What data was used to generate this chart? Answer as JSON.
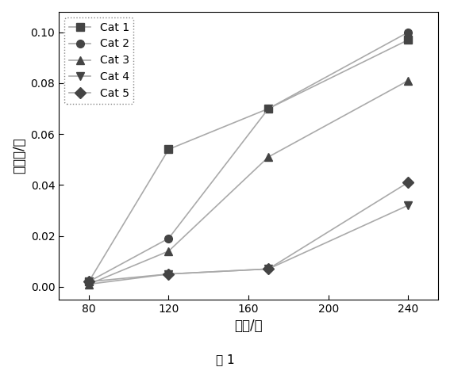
{
  "x": [
    80,
    120,
    170,
    240
  ],
  "series": [
    {
      "label": "Cat 1",
      "y": [
        0.002,
        0.054,
        0.07,
        0.097
      ],
      "marker": "s",
      "color": "#444444"
    },
    {
      "label": "Cat 2",
      "y": [
        0.002,
        0.019,
        0.07,
        0.1
      ],
      "marker": "o",
      "color": "#444444"
    },
    {
      "label": "Cat 3",
      "y": [
        0.001,
        0.014,
        0.051,
        0.081
      ],
      "marker": "^",
      "color": "#444444"
    },
    {
      "label": "Cat 4",
      "y": [
        0.001,
        0.005,
        0.007,
        0.032
      ],
      "marker": "v",
      "color": "#444444"
    },
    {
      "label": "Cat 5",
      "y": [
        0.002,
        0.005,
        0.007,
        0.041
      ],
      "marker": "D",
      "color": "#444444"
    }
  ],
  "line_color": "#aaaaaa",
  "xlabel": "时间/分",
  "ylabel": "积碳量/克",
  "caption": "图 1",
  "xlim": [
    65,
    255
  ],
  "ylim": [
    -0.005,
    0.108
  ],
  "xticks": [
    80,
    120,
    160,
    200,
    240
  ],
  "yticks": [
    0.0,
    0.02,
    0.04,
    0.06,
    0.08,
    0.1
  ],
  "background_color": "#ffffff",
  "figure_background": "#ffffff",
  "markersize": 7,
  "linewidth": 1.2
}
